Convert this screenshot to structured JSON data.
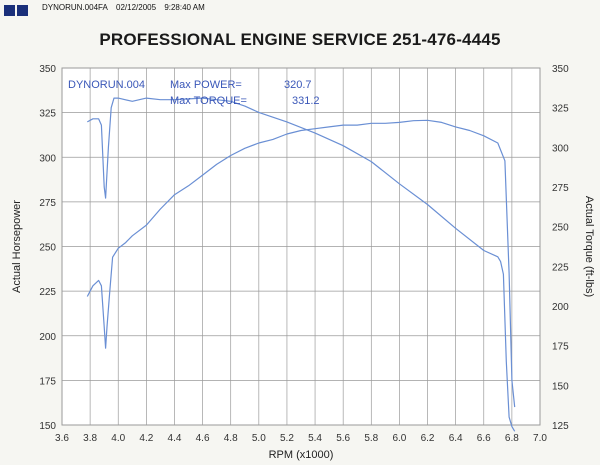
{
  "header": {
    "filename": "DYNORUN.004FA",
    "date": "02/12/2005",
    "time": "9:28:40 AM"
  },
  "colors": {
    "plot_bg": "#ffffff",
    "grid": "#9a9a9a",
    "curve": "#6a8fd4",
    "logo": "#1a2f7a"
  },
  "chart_data": {
    "type": "line",
    "title": "PROFESSIONAL ENGINE SERVICE 251-476-4445",
    "xlabel": "RPM (x1000)",
    "ylabel_left": "Actual Horsepower",
    "ylabel_right": "Actual Torque (ft-lbs)",
    "xlim": [
      3.6,
      7.0
    ],
    "ylim_left": [
      150,
      350
    ],
    "ylim_right": [
      125,
      350
    ],
    "x_ticks": [
      "3.6",
      "3.8",
      "4.0",
      "4.2",
      "4.4",
      "4.6",
      "4.8",
      "5.0",
      "5.2",
      "5.4",
      "5.6",
      "5.8",
      "6.0",
      "6.2",
      "6.4",
      "6.6",
      "6.8",
      "7.0"
    ],
    "y_ticks_left": [
      "150",
      "175",
      "200",
      "225",
      "250",
      "275",
      "300",
      "325",
      "350"
    ],
    "y_ticks_right": [
      "125",
      "150",
      "175",
      "200",
      "225",
      "250",
      "275",
      "300",
      "325",
      "350"
    ],
    "grid": true,
    "annotations": {
      "run": "DYNORUN.004",
      "max_power_label": "Max POWER=",
      "max_power_value": "320.7",
      "max_torque_label": "Max TORQUE=",
      "max_torque_value": "331.2"
    },
    "series": [
      {
        "axis": "left",
        "x": [
          3.78,
          3.82,
          3.86,
          3.88,
          3.9,
          3.91,
          3.92,
          3.94,
          3.96,
          4.0,
          4.05,
          4.1,
          4.2,
          4.3,
          4.4,
          4.5,
          4.6,
          4.7,
          4.8,
          4.9,
          5.0,
          5.1,
          5.2,
          5.3,
          5.4,
          5.5,
          5.6,
          5.7,
          5.8,
          5.9,
          6.0,
          6.1,
          6.2,
          6.3,
          6.4,
          6.5,
          6.6,
          6.7,
          6.75,
          6.78,
          6.8,
          6.82
        ],
        "values": [
          222,
          228,
          231,
          228,
          205,
          193,
          205,
          225,
          244,
          249,
          252,
          256,
          262,
          271,
          279,
          284,
          290,
          296,
          301,
          305,
          308,
          310,
          313,
          315,
          316,
          317,
          318,
          318,
          319,
          319,
          319.5,
          320.5,
          320.7,
          319.5,
          317,
          315,
          312,
          308,
          298,
          235,
          175,
          160
        ]
      },
      {
        "axis": "right",
        "x": [
          3.78,
          3.82,
          3.86,
          3.88,
          3.9,
          3.91,
          3.93,
          3.95,
          3.97,
          4.0,
          4.1,
          4.2,
          4.3,
          4.4,
          4.5,
          4.6,
          4.7,
          4.8,
          4.9,
          5.0,
          5.2,
          5.4,
          5.6,
          5.8,
          6.0,
          6.2,
          6.4,
          6.6,
          6.7,
          6.72,
          6.74,
          6.76,
          6.78,
          6.8,
          6.82
        ],
        "values": [
          316,
          318,
          318,
          314,
          275,
          268,
          300,
          325,
          331,
          331,
          329,
          331,
          330,
          330,
          330.5,
          331,
          330,
          329,
          326,
          322,
          316,
          309,
          301,
          291,
          277,
          264,
          249,
          235,
          231,
          228,
          220,
          165,
          130,
          124,
          121
        ]
      }
    ]
  }
}
